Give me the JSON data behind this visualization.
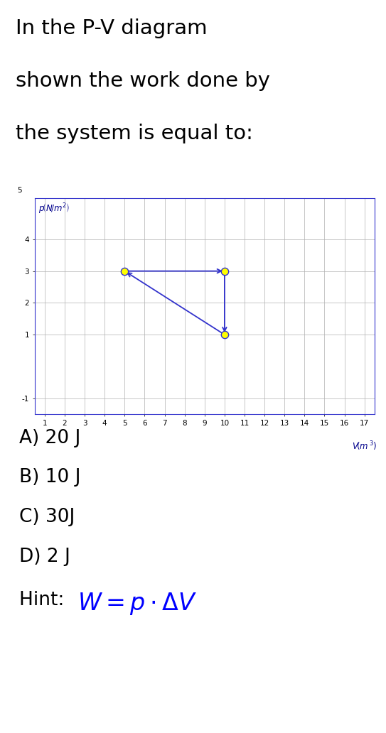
{
  "title_lines": [
    "In the P-V diagram",
    "shown the work done by",
    "the system is equal to:"
  ],
  "title_fontsize": 21,
  "title_color": "#000000",
  "graph_bg": "#ffffff",
  "grid_color": "#b0b0b0",
  "xlim": [
    0.5,
    17.5
  ],
  "ylim": [
    -1.5,
    5.3
  ],
  "xtick_min": 1,
  "xtick_max": 17,
  "yticks": [
    -1,
    1,
    2,
    3,
    4
  ],
  "ytick_labels": [
    "-1",
    "1",
    "2",
    "3",
    "4"
  ],
  "axis_label_color": "#00008B",
  "tick_color": "#000000",
  "tick_fontsize": 7.5,
  "points": [
    [
      5,
      3
    ],
    [
      10,
      3
    ],
    [
      10,
      1
    ]
  ],
  "point_color": "#ffff00",
  "point_edgecolor": "#3333cc",
  "point_size": 55,
  "arrow_color": "#3333cc",
  "arrow_lw": 1.3,
  "spine_color": "#3333cc",
  "choices": [
    "A) 20 J",
    "B) 10 J",
    "C) 30J",
    "D) 2 J"
  ],
  "choices_fontsize": 19,
  "choices_color": "#000000",
  "hint_prefix": "Hint: ",
  "hint_fontsize": 19,
  "hint_prefix_color": "#000000",
  "hint_formula_color": "#0000ff",
  "hint_formula_fontsize": 24
}
